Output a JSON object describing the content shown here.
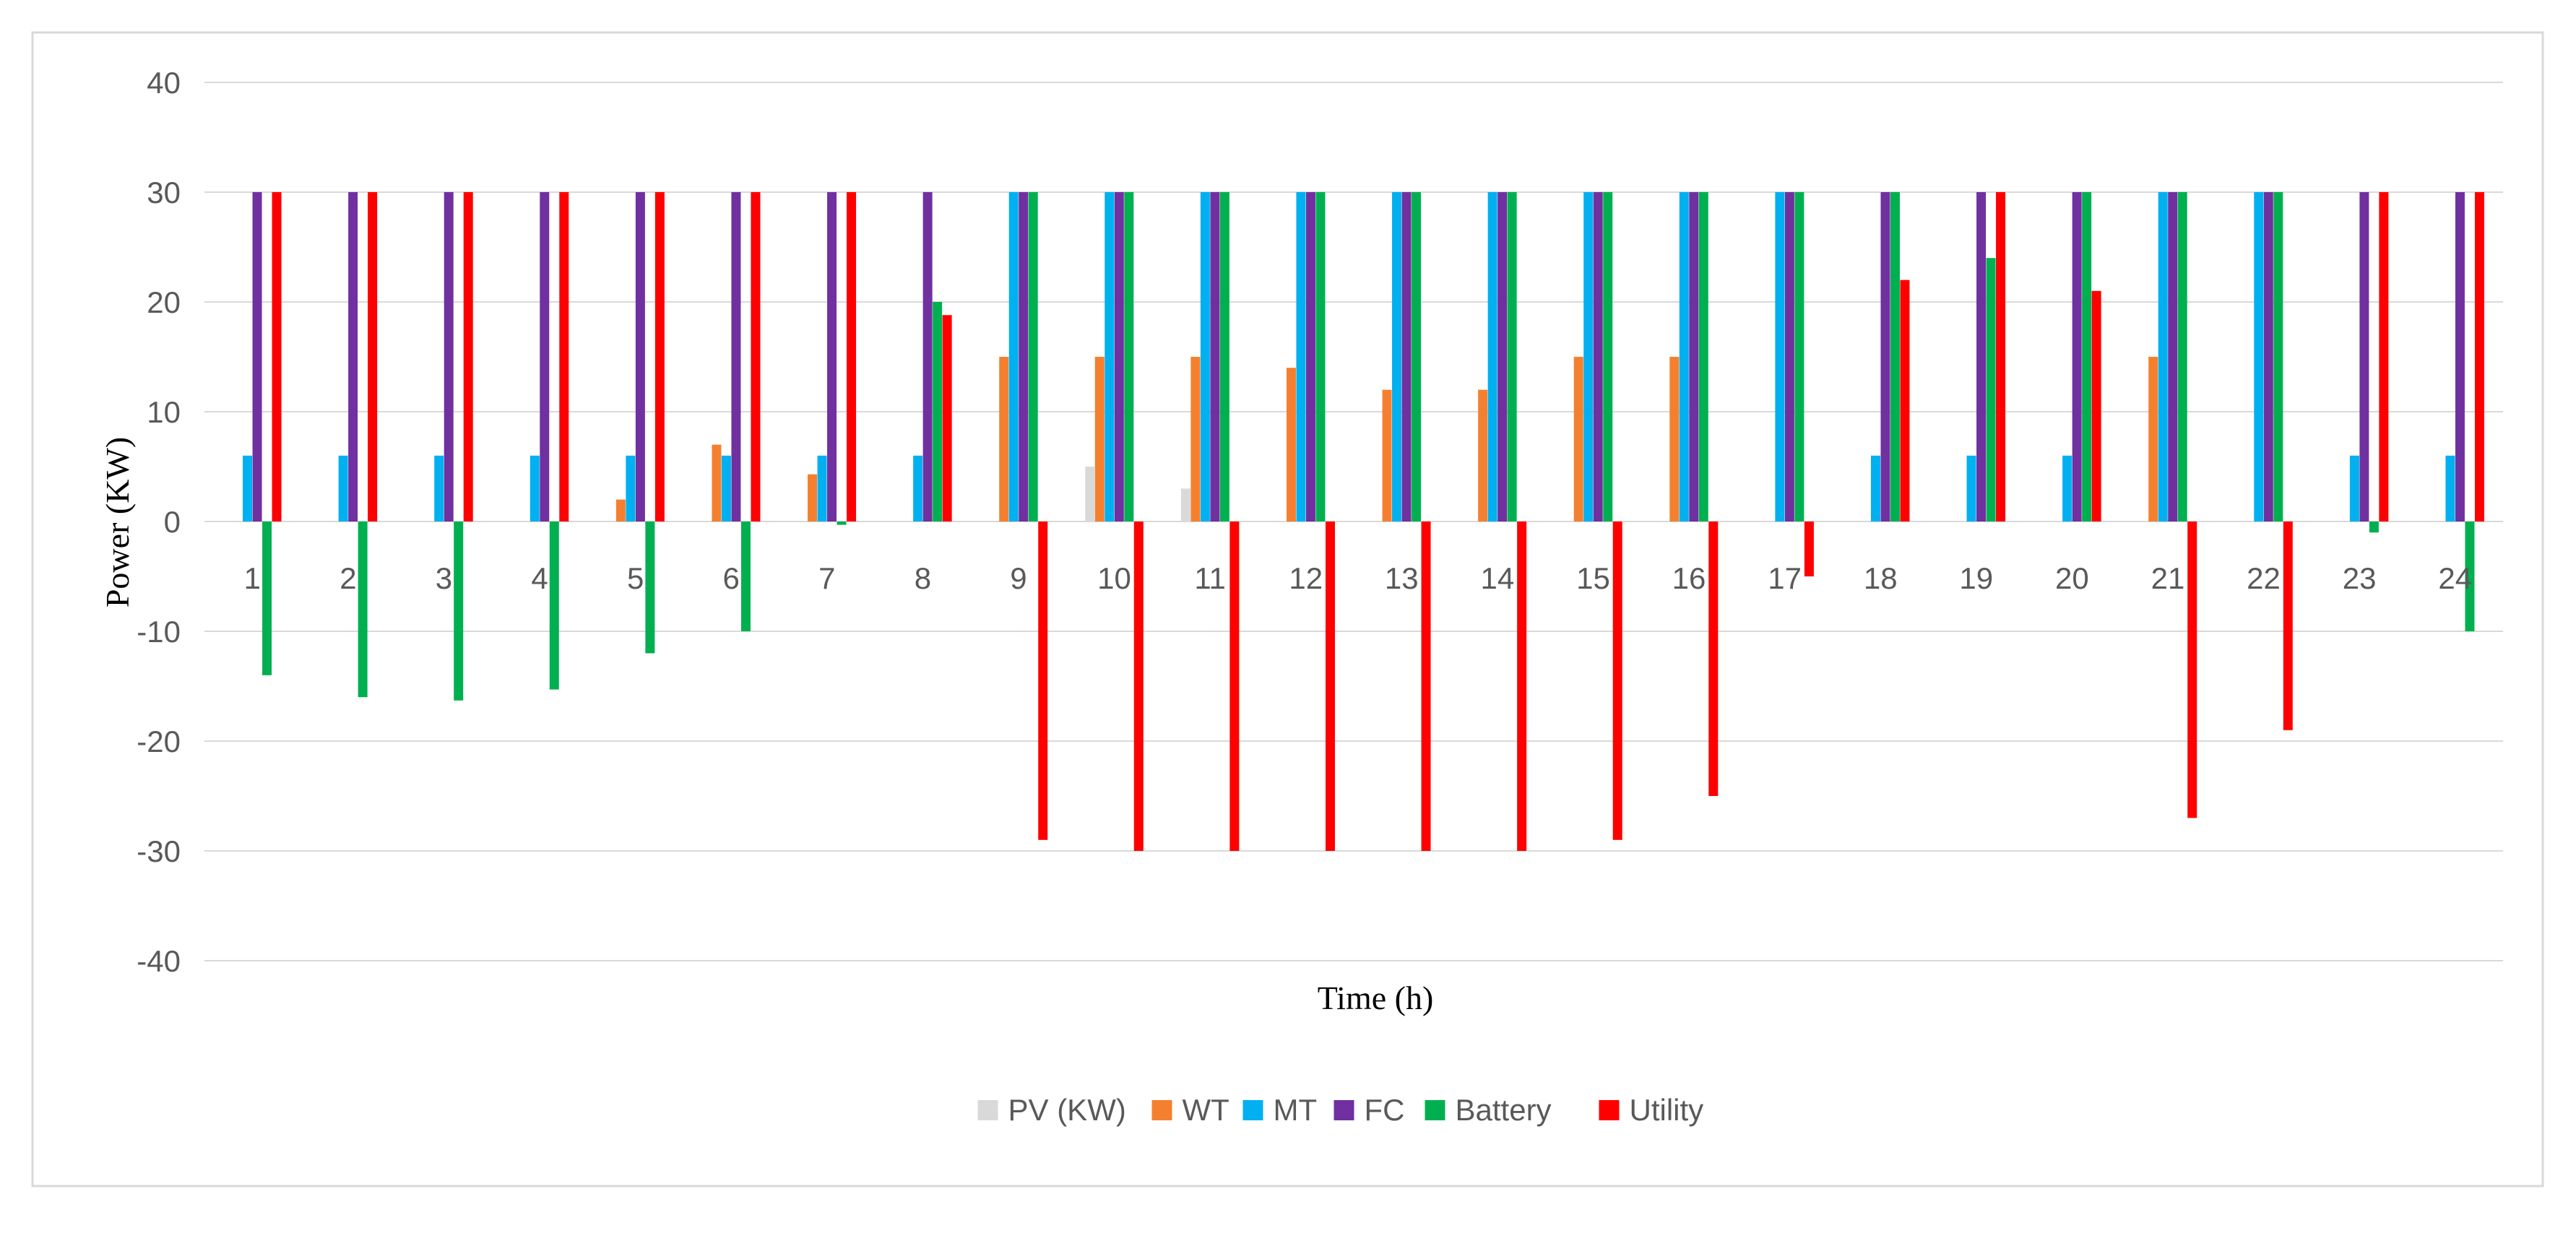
{
  "chart_data": {
    "type": "bar",
    "title": "",
    "xlabel": "Time (h)",
    "ylabel": "Power (KW)",
    "ylim": [
      -40,
      40
    ],
    "yticks": [
      40,
      30,
      20,
      10,
      0,
      -10,
      -20,
      -30,
      -40
    ],
    "grid": true,
    "legend_position": "bottom",
    "categories": [
      "1",
      "2",
      "3",
      "4",
      "5",
      "6",
      "7",
      "8",
      "9",
      "10",
      "11",
      "12",
      "13",
      "14",
      "15",
      "16",
      "17",
      "18",
      "19",
      "20",
      "21",
      "22",
      "23",
      "24"
    ],
    "series": [
      {
        "name": "PV (KW)",
        "color": "#d9d9d9",
        "values": [
          0,
          0,
          0,
          0,
          0,
          0,
          0,
          0,
          0,
          5,
          3,
          0,
          0,
          0,
          0,
          0,
          0,
          0,
          0,
          0,
          0,
          0,
          0,
          0
        ]
      },
      {
        "name": "WT",
        "color": "#f4802f",
        "values": [
          0,
          0,
          0,
          0,
          2,
          7,
          4.3,
          0,
          15,
          15,
          15,
          14,
          12,
          12,
          15,
          15,
          0,
          0,
          0,
          0,
          15,
          0,
          0,
          0
        ]
      },
      {
        "name": "MT",
        "color": "#00b0f0",
        "values": [
          6,
          6,
          6,
          6,
          6,
          6,
          6,
          6,
          30,
          30,
          30,
          30,
          30,
          30,
          30,
          30,
          30,
          6,
          6,
          6,
          30,
          30,
          6,
          6
        ]
      },
      {
        "name": "FC",
        "color": "#7030a0",
        "values": [
          30,
          30,
          30,
          30,
          30,
          30,
          30,
          30,
          30,
          30,
          30,
          30,
          30,
          30,
          30,
          30,
          30,
          30,
          30,
          30,
          30,
          30,
          30,
          30
        ]
      },
      {
        "name": "Battery",
        "color": "#00b050",
        "values": [
          -14,
          -16,
          -16.3,
          -15.3,
          -12,
          -10,
          -0.3,
          20,
          30,
          30,
          30,
          30,
          30,
          30,
          30,
          30,
          30,
          30,
          24,
          30,
          30,
          30,
          -1,
          -10
        ]
      },
      {
        "name": "Utility",
        "color": "#ff0000",
        "values": [
          30,
          30,
          30,
          30,
          30,
          30,
          30,
          18.8,
          -29,
          -30,
          -30,
          -30,
          -30,
          -30,
          -29,
          -25,
          -5,
          22,
          30,
          21,
          -27,
          -19,
          30,
          30
        ]
      }
    ]
  }
}
